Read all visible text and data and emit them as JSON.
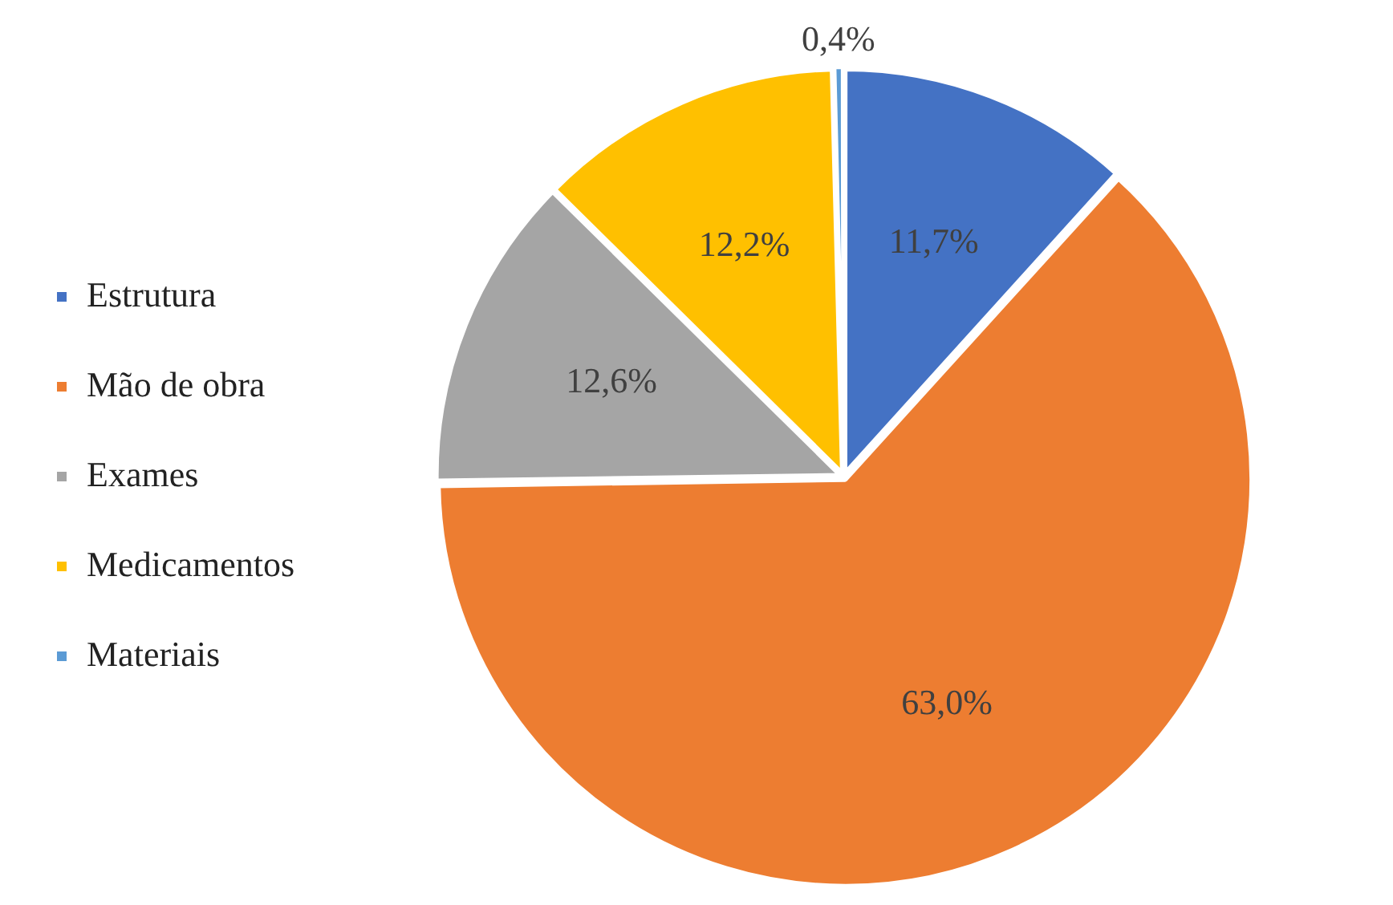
{
  "chart_data": {
    "type": "pie",
    "categories": [
      "Estrutura",
      "Mão de obra",
      "Exames",
      "Medicamentos",
      "Materiais"
    ],
    "values": [
      11.7,
      63.0,
      12.6,
      12.2,
      0.4
    ],
    "colors": [
      "#4472c4",
      "#ed7d31",
      "#a5a5a5",
      "#ffc000",
      "#5b9bd5"
    ],
    "value_labels": [
      "11,7%",
      "63,0%",
      "12,6%",
      "12,2%",
      "0,4%"
    ],
    "legend": "left"
  }
}
